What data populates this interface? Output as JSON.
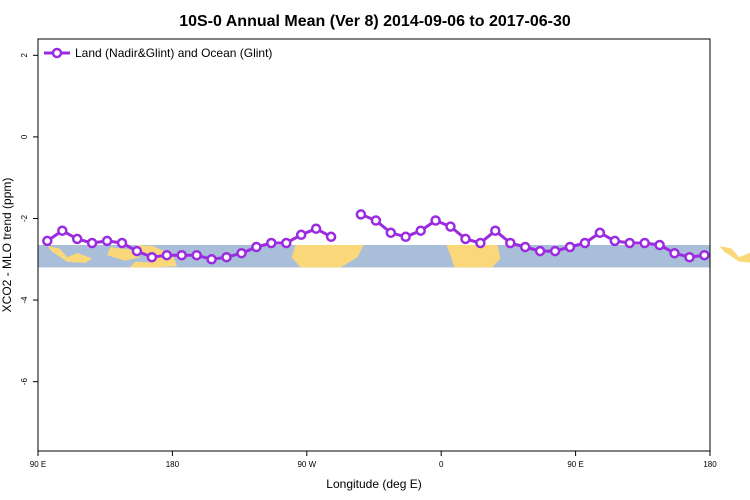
{
  "chart_data": {
    "type": "line",
    "title": "10S-0 Annual Mean (Ver 8)   2014-09-06 to 2017-06-30",
    "xlabel": "Longitude (deg E)",
    "ylabel": "XCO2 - MLO trend (ppm)",
    "xlim": [
      90,
      450
    ],
    "ylim": [
      -7.7,
      2.4
    ],
    "x_ticks": [
      {
        "value": 90,
        "label": "90 E"
      },
      {
        "value": 162,
        "label": "180"
      },
      {
        "value": 234,
        "label": "90 W"
      },
      {
        "value": 306,
        "label": "0"
      },
      {
        "value": 378,
        "label": "90 E"
      },
      {
        "value": 450,
        "label": "180"
      }
    ],
    "y_ticks": [
      {
        "value": 2,
        "label": "2"
      },
      {
        "value": 0,
        "label": "0"
      },
      {
        "value": -2,
        "label": "-2"
      },
      {
        "value": -4,
        "label": "-4"
      },
      {
        "value": -6,
        "label": "-6"
      }
    ],
    "grid": false,
    "legend_position": "top-left",
    "map_band": {
      "y_top": -2.65,
      "y_bottom": -3.2,
      "ocean_color": "#a9bed8",
      "land_color": "#fad87a"
    },
    "series": [
      {
        "name": "Land (Nadir&Glint) and Ocean (Glint)",
        "color": "#9b2be0",
        "segments": [
          [
            [
              95,
              -2.55
            ],
            [
              103,
              -2.3
            ],
            [
              111,
              -2.5
            ],
            [
              119,
              -2.6
            ],
            [
              127,
              -2.55
            ],
            [
              135,
              -2.6
            ],
            [
              143,
              -2.8
            ],
            [
              151,
              -2.95
            ],
            [
              159,
              -2.9
            ],
            [
              167,
              -2.9
            ],
            [
              175,
              -2.9
            ],
            [
              183,
              -3.0
            ],
            [
              191,
              -2.95
            ],
            [
              199,
              -2.85
            ],
            [
              207,
              -2.7
            ],
            [
              215,
              -2.6
            ],
            [
              223,
              -2.6
            ],
            [
              231,
              -2.4
            ],
            [
              239,
              -2.25
            ],
            [
              247,
              -2.45
            ]
          ],
          [
            [
              263,
              -1.9
            ],
            [
              271,
              -2.05
            ],
            [
              279,
              -2.35
            ],
            [
              287,
              -2.45
            ],
            [
              295,
              -2.3
            ],
            [
              303,
              -2.05
            ],
            [
              311,
              -2.2
            ],
            [
              319,
              -2.5
            ],
            [
              327,
              -2.6
            ],
            [
              335,
              -2.3
            ],
            [
              343,
              -2.6
            ],
            [
              351,
              -2.7
            ],
            [
              359,
              -2.8
            ],
            [
              367,
              -2.8
            ],
            [
              375,
              -2.7
            ],
            [
              383,
              -2.6
            ],
            [
              391,
              -2.35
            ],
            [
              399,
              -2.55
            ],
            [
              407,
              -2.6
            ],
            [
              415,
              -2.6
            ],
            [
              423,
              -2.65
            ],
            [
              431,
              -2.85
            ],
            [
              439,
              -2.95
            ],
            [
              447,
              -2.9
            ]
          ]
        ]
      }
    ]
  }
}
